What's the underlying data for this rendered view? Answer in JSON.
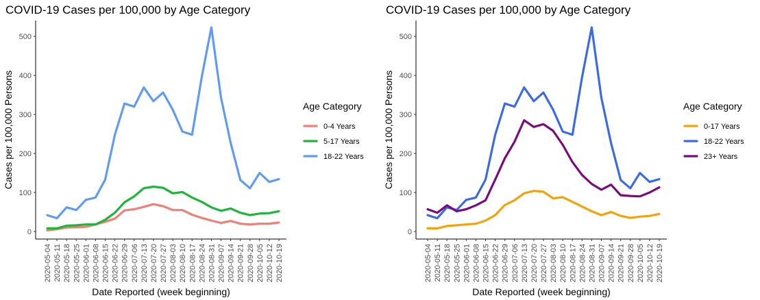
{
  "chart_data": [
    {
      "type": "line",
      "title": "COVID-19 Cases per 100,000 by Age Category",
      "xlabel": "Date Reported (week beginning)",
      "ylabel": "Cases per 100,000 Persons",
      "ylim": [
        0,
        530
      ],
      "yticks": [
        "0",
        "100",
        "200",
        "300",
        "400",
        "500"
      ],
      "grid": false,
      "legend": {
        "title": "Age Category",
        "placement": "right"
      },
      "x": [
        "2020-05-04",
        "2020-05-11",
        "2020-05-18",
        "2020-05-25",
        "2020-06-01",
        "2020-06-08",
        "2020-06-15",
        "2020-06-22",
        "2020-06-29",
        "2020-07-06",
        "2020-07-13",
        "2020-07-20",
        "2020-07-27",
        "2020-08-03",
        "2020-08-10",
        "2020-08-17",
        "2020-08-24",
        "2020-08-31",
        "2020-09-07",
        "2020-09-14",
        "2020-09-21",
        "2020-09-28",
        "2020-10-05",
        "2020-10-12",
        "2020-10-19"
      ],
      "series": [
        {
          "name": "0-4 Years",
          "color": "#f07f75",
          "values": [
            3,
            6,
            10,
            11,
            12,
            18,
            25,
            33,
            54,
            57,
            63,
            70,
            65,
            55,
            55,
            43,
            35,
            28,
            22,
            27,
            20,
            18,
            20,
            20,
            23
          ]
        },
        {
          "name": "5-17 Years",
          "color": "#1bb63a",
          "values": [
            8,
            8,
            15,
            16,
            18,
            18,
            30,
            48,
            75,
            90,
            111,
            115,
            112,
            98,
            101,
            87,
            76,
            62,
            53,
            59,
            48,
            42,
            46,
            47,
            52
          ]
        },
        {
          "name": "18-22 Years",
          "color": "#5f9cf0",
          "values": [
            42,
            34,
            62,
            55,
            81,
            87,
            133,
            248,
            328,
            320,
            369,
            334,
            356,
            312,
            256,
            248,
            395,
            523,
            343,
            227,
            132,
            111,
            150,
            127,
            134
          ]
        }
      ]
    },
    {
      "type": "line",
      "title": "COVID-19 Cases per 100,000 by Age Category",
      "xlabel": "Date Reported (week beginning)",
      "ylabel": "Cases per 100,000 Persons",
      "ylim": [
        0,
        530
      ],
      "yticks": [
        "0",
        "100",
        "200",
        "300",
        "400",
        "500"
      ],
      "grid": false,
      "legend": {
        "title": "Age Category",
        "placement": "right"
      },
      "x": [
        "2020-05-04",
        "2020-05-11",
        "2020-05-18",
        "2020-05-25",
        "2020-06-01",
        "2020-06-08",
        "2020-06-15",
        "2020-06-22",
        "2020-06-29",
        "2020-07-06",
        "2020-07-13",
        "2020-07-20",
        "2020-07-27",
        "2020-08-03",
        "2020-08-10",
        "2020-08-17",
        "2020-08-24",
        "2020-08-31",
        "2020-09-07",
        "2020-09-14",
        "2020-09-21",
        "2020-09-28",
        "2020-10-05",
        "2020-10-12",
        "2020-10-19"
      ],
      "series": [
        {
          "name": "0-17 Years",
          "color": "#f5a209",
          "values": [
            8,
            8,
            14,
            16,
            18,
            20,
            28,
            42,
            68,
            80,
            98,
            104,
            102,
            85,
            88,
            76,
            64,
            52,
            42,
            50,
            40,
            35,
            38,
            40,
            45
          ]
        },
        {
          "name": "18-22 Years",
          "color": "#3a6ae6",
          "values": [
            42,
            34,
            62,
            55,
            81,
            87,
            133,
            248,
            328,
            320,
            369,
            334,
            356,
            312,
            256,
            248,
            395,
            523,
            343,
            227,
            132,
            111,
            150,
            127,
            134
          ]
        },
        {
          "name": "23+ Years",
          "color": "#7b0a7c",
          "values": [
            57,
            48,
            67,
            52,
            57,
            67,
            80,
            133,
            188,
            230,
            285,
            268,
            275,
            258,
            222,
            178,
            145,
            122,
            107,
            120,
            93,
            91,
            90,
            100,
            113
          ]
        }
      ]
    }
  ]
}
